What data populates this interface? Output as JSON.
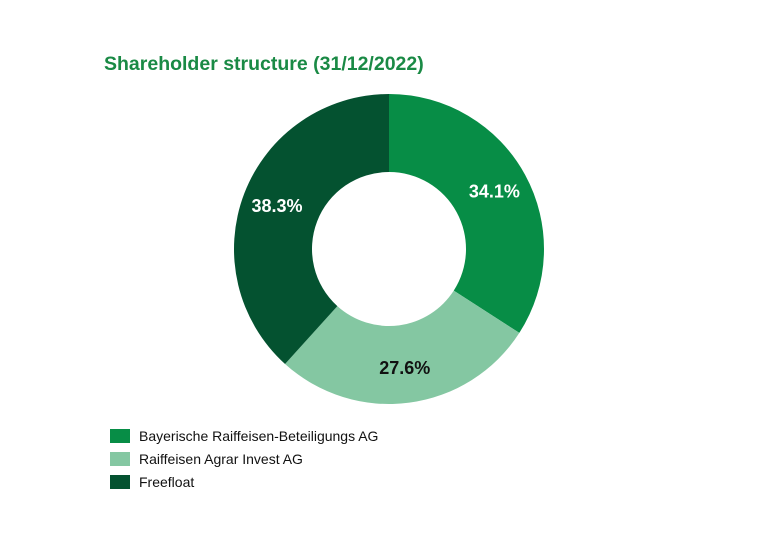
{
  "chart_data": {
    "type": "pie",
    "title": "Shareholder structure (31/12/2022)",
    "series": [
      {
        "name": "Bayerische Raiffeisen-Beteiligungs AG",
        "value": 34.1,
        "label": "34.1%",
        "color": "#078d46",
        "label_color": "#ffffff"
      },
      {
        "name": "Raiffeisen Agrar Invest AG",
        "value": 27.6,
        "label": "27.6%",
        "color": "#84c7a2",
        "label_color": "#111111"
      },
      {
        "name": "Freefloat",
        "value": 38.3,
        "label": "38.3%",
        "color": "#045230",
        "label_color": "#ffffff"
      }
    ],
    "legend_placement": "bottom-left"
  }
}
